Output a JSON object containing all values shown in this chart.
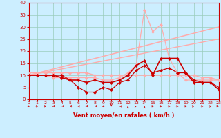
{
  "bg_color": "#cceeff",
  "grid_color": "#99ccbb",
  "xlabel": "Vent moyen/en rafales ( km/h )",
  "xlim": [
    0,
    23
  ],
  "ylim": [
    0,
    40
  ],
  "yticks": [
    0,
    5,
    10,
    15,
    20,
    25,
    30,
    35,
    40
  ],
  "xticks": [
    0,
    1,
    2,
    3,
    4,
    5,
    6,
    7,
    8,
    9,
    10,
    11,
    12,
    13,
    14,
    15,
    16,
    17,
    18,
    19,
    20,
    21,
    22,
    23
  ],
  "lines": [
    {
      "x": [
        0,
        1,
        2,
        3,
        4,
        5,
        6,
        7,
        8,
        9,
        10,
        11,
        12,
        13,
        14,
        15,
        16,
        17,
        18,
        19,
        20,
        21,
        22,
        23
      ],
      "y": [
        10,
        10,
        10,
        10,
        9,
        8,
        8,
        7,
        8,
        7,
        7,
        8,
        10,
        14,
        16,
        10,
        17,
        17,
        17,
        11,
        7,
        7,
        7,
        4
      ],
      "color": "#cc0000",
      "marker": "D",
      "markersize": 2,
      "linewidth": 1.2,
      "zorder": 5
    },
    {
      "x": [
        0,
        1,
        2,
        3,
        4,
        5,
        6,
        7,
        8,
        9,
        10,
        11,
        12,
        13,
        14,
        15,
        16,
        17,
        18,
        19,
        20,
        21,
        22,
        23
      ],
      "y": [
        10,
        10,
        10,
        10,
        10,
        8,
        5,
        3,
        3,
        5,
        4,
        7,
        8,
        12,
        14,
        11,
        12,
        13,
        11,
        11,
        8,
        7,
        7,
        5
      ],
      "color": "#cc0000",
      "marker": "D",
      "markersize": 2,
      "linewidth": 0.9,
      "zorder": 4
    },
    {
      "x": [
        0,
        1,
        2,
        3,
        4,
        5,
        6,
        7,
        8,
        9,
        10,
        11,
        12,
        13,
        14,
        15,
        16,
        17,
        18,
        19,
        20,
        21,
        22,
        23
      ],
      "y": [
        11,
        11,
        11,
        11,
        11,
        11,
        11,
        11,
        10,
        10,
        10,
        10,
        10,
        10,
        10,
        10,
        10,
        10,
        10,
        10,
        10,
        9,
        9,
        8
      ],
      "color": "#ffaaaa",
      "marker": "D",
      "markersize": 2,
      "linewidth": 1.0,
      "zorder": 3
    },
    {
      "x": [
        0,
        1,
        2,
        3,
        4,
        5,
        6,
        7,
        8,
        9,
        10,
        11,
        12,
        13,
        14,
        15,
        16,
        17,
        18,
        19,
        20,
        21,
        22,
        23
      ],
      "y": [
        10,
        10,
        10,
        9,
        9,
        9,
        9,
        9,
        9,
        8,
        8,
        9,
        11,
        14,
        37,
        28,
        31,
        17,
        11,
        8,
        8,
        8,
        8,
        8
      ],
      "color": "#ffaaaa",
      "marker": "D",
      "markersize": 2,
      "linewidth": 0.9,
      "zorder": 3
    },
    {
      "x": [
        0,
        23
      ],
      "y": [
        10,
        30
      ],
      "color": "#ffaaaa",
      "marker": null,
      "linewidth": 1.1,
      "zorder": 2
    },
    {
      "x": [
        0,
        23
      ],
      "y": [
        10,
        25
      ],
      "color": "#ffaaaa",
      "marker": null,
      "linewidth": 1.0,
      "zorder": 2
    }
  ],
  "wind_dirs": [
    90,
    90,
    90,
    200,
    220,
    230,
    240,
    200,
    220,
    270,
    180,
    320,
    360,
    10,
    0,
    90,
    90,
    90,
    90,
    90,
    45,
    90,
    20,
    140
  ]
}
